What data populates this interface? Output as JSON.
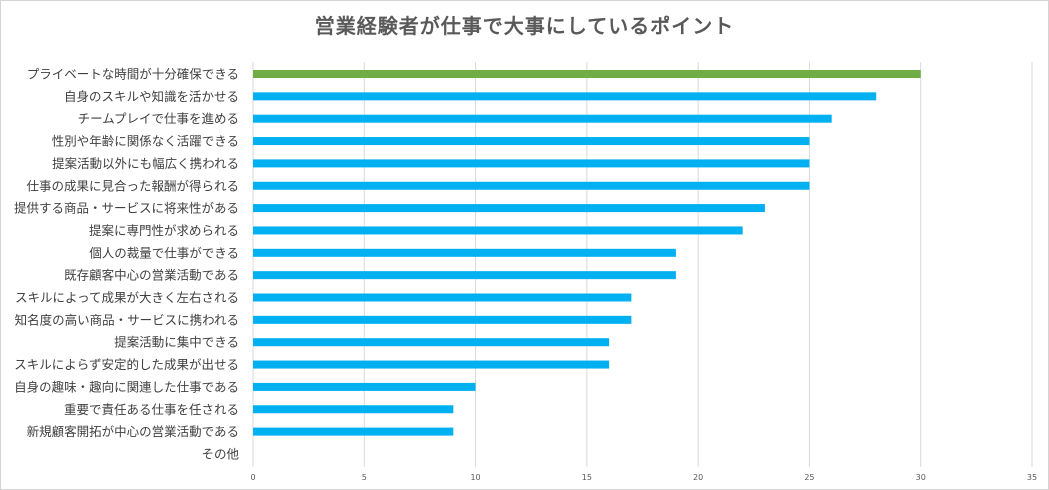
{
  "chart_data": {
    "type": "bar",
    "orientation": "horizontal",
    "title": "営業経験者が仕事で大事にしているポイント",
    "categories": [
      "プライベートな時間が十分確保できる",
      "自身のスキルや知識を活かせる",
      "チームプレイで仕事を進める",
      "性別や年齢に関係なく活躍できる",
      "提案活動以外にも幅広く携われる",
      "仕事の成果に見合った報酬が得られる",
      "提供する商品・サービスに将来性がある",
      "提案に専門性が求められる",
      "個人の裁量で仕事ができる",
      "既存顧客中心の営業活動である",
      "スキルによって成果が大きく左右される",
      "知名度の高い商品・サービスに携われる",
      "提案活動に集中できる",
      "スキルによらず安定的した成果が出せる",
      "自身の趣味・趣向に関連した仕事である",
      "重要で責任ある仕事を任される",
      "新規顧客開拓が中心の営業活動である",
      "その他"
    ],
    "values": [
      30,
      28,
      26,
      25,
      25,
      25,
      23,
      22,
      19,
      19,
      17,
      17,
      16,
      16,
      10,
      9,
      9,
      0
    ],
    "xlim": [
      0,
      35
    ],
    "xticks": [
      "0",
      "5",
      "10",
      "15",
      "20",
      "25",
      "30",
      "35"
    ],
    "xlabel": "",
    "ylabel": "",
    "grid": "vertical",
    "legend": "none",
    "colors": {
      "highlight": "#70ad47",
      "bar": "#00b0f0",
      "grid": "#d9d9d9",
      "text": "#404040",
      "title": "#595959"
    }
  }
}
